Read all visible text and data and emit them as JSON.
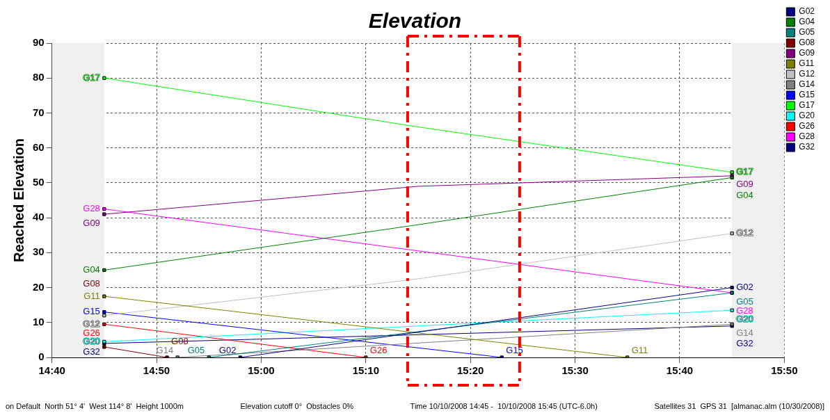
{
  "chart_data": {
    "type": "line",
    "title": "Elevation",
    "ylabel": "Reached Elevation",
    "xlim": [
      14.6667,
      15.8333
    ],
    "xticks": [
      {
        "value": 14.6667,
        "label": "14:40"
      },
      {
        "value": 14.8333,
        "label": "14:50"
      },
      {
        "value": 15,
        "label": "15:00"
      },
      {
        "value": 15.1667,
        "label": "15:10"
      },
      {
        "value": 15.3333,
        "label": "15:20"
      },
      {
        "value": 15.5,
        "label": "15:30"
      },
      {
        "value": 15.6667,
        "label": "15:40"
      },
      {
        "value": 15.8333,
        "label": "15:50"
      }
    ],
    "ylim": [
      0,
      90
    ],
    "yticks": [
      0,
      10,
      20,
      30,
      40,
      50,
      60,
      70,
      80,
      90
    ],
    "grid": true,
    "legend": "right",
    "marker": "square",
    "line_style": "solid",
    "bands": [
      {
        "axis": "x",
        "from": 14.6667,
        "to": 14.75,
        "color": "#f0f0f0"
      },
      {
        "axis": "x",
        "from": 15.75,
        "to": 15.8333,
        "color": "#f0f0f0"
      }
    ],
    "ref_lines": [
      {
        "axis": "x",
        "value": 15.2333,
        "color": "#ff0000",
        "line_style": "dashed"
      },
      {
        "axis": "x",
        "value": 15.4117,
        "color": "#ff0000",
        "line_style": "dashed"
      }
    ],
    "series": [
      {
        "name": "G02",
        "color": "#000080",
        "x": [
          14.9667,
          15.75
        ],
        "values": [
          0,
          20
        ]
      },
      {
        "name": "G04",
        "color": "#008000",
        "x": [
          14.75,
          15.25,
          15.75
        ],
        "values": [
          25,
          38,
          51.5
        ]
      },
      {
        "name": "G05",
        "color": "#008080",
        "x": [
          14.9167,
          15.75
        ],
        "values": [
          0,
          18.5
        ]
      },
      {
        "name": "G08",
        "color": "#800000",
        "x": [
          14.75,
          14.85
        ],
        "values": [
          3,
          0
        ]
      },
      {
        "name": "G09",
        "color": "#800080",
        "x": [
          14.75,
          15.25,
          15.75
        ],
        "values": [
          41,
          49,
          52
        ]
      },
      {
        "name": "G11",
        "color": "#808000",
        "x": [
          14.75,
          15.5833
        ],
        "values": [
          17.5,
          0
        ]
      },
      {
        "name": "G12",
        "color": "#c0c0c0",
        "x": [
          14.75,
          15.25,
          15.75
        ],
        "values": [
          12,
          22.5,
          35.5
        ]
      },
      {
        "name": "G14",
        "color": "#808080",
        "x": [
          14.8667,
          15.75
        ],
        "values": [
          0,
          9.5
        ]
      },
      {
        "name": "G15",
        "color": "#0000ff",
        "x": [
          14.75,
          15.3833
        ],
        "values": [
          13,
          0
        ]
      },
      {
        "name": "G17",
        "color": "#00ff00",
        "x": [
          14.75,
          15.25,
          15.75
        ],
        "values": [
          80,
          66,
          53
        ]
      },
      {
        "name": "G20",
        "color": "#00ffff",
        "x": [
          14.75,
          15.75
        ],
        "values": [
          4.5,
          13.5
        ]
      },
      {
        "name": "G26",
        "color": "#ff0000",
        "x": [
          14.75,
          15.1667
        ],
        "values": [
          9.5,
          0
        ]
      },
      {
        "name": "G28",
        "color": "#ff00ff",
        "x": [
          14.75,
          15.75
        ],
        "values": [
          42.5,
          18.5
        ]
      },
      {
        "name": "G32",
        "color": "#000080",
        "x": [
          14.75,
          15.75
        ],
        "values": [
          4,
          9
        ]
      }
    ],
    "annotations": [
      "on Default  North 51° 4'  West 114° 8'  Height 1000m",
      "Elevation cutoff 0°  Obstacles 0%",
      "Time 10/10/2008 14:45 -  10/10/2008 15:45 (UTC-6.0h)",
      "Satellites 31  GPS 31  [almanac.alm (10/30/2008)]"
    ]
  }
}
